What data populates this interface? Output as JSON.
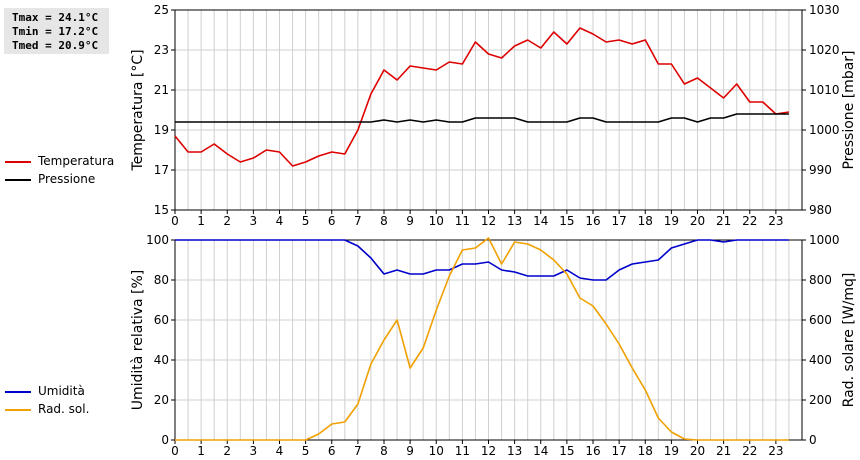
{
  "stats": {
    "tmax": "Tmax = 24.1°C",
    "tmin": "Tmin = 17.2°C",
    "tmed": "Tmed = 20.9°C"
  },
  "legend_top": [
    {
      "label": "Temperatura",
      "color": "#dd0000"
    },
    {
      "label": "Pressione",
      "color": "#000000"
    }
  ],
  "legend_bottom": [
    {
      "label": "Umidità",
      "color": "#0000cc"
    },
    {
      "label": "Rad. sol.",
      "color": "#f0a000"
    }
  ],
  "chart_data": [
    {
      "type": "line",
      "ylabel": "Temperatura [°C]",
      "y2label": "Pressione [mbar]",
      "xlim": [
        0,
        24
      ],
      "ylim": [
        15,
        25
      ],
      "y2lim": [
        980,
        1030
      ],
      "x_ticks": [
        "0",
        "1",
        "2",
        "3",
        "4",
        "5",
        "6",
        "7",
        "8",
        "9",
        "10",
        "11",
        "12",
        "13",
        "14",
        "15",
        "16",
        "17",
        "18",
        "19",
        "20",
        "21",
        "22",
        "23"
      ],
      "y_ticks": [
        "15",
        "17",
        "19",
        "21",
        "23",
        "25"
      ],
      "y2_ticks": [
        "980",
        "990",
        "1000",
        "1010",
        "1020",
        "1030"
      ],
      "grid": true,
      "series": [
        {
          "name": "Temperatura",
          "axis": "left",
          "color": "#dd0000",
          "x": [
            0,
            0.5,
            1,
            1.5,
            2,
            2.5,
            3,
            3.5,
            4,
            4.5,
            5,
            5.5,
            6,
            6.5,
            7,
            7.5,
            8,
            8.5,
            9,
            9.5,
            10,
            10.5,
            11,
            11.5,
            12,
            12.5,
            13,
            13.5,
            14,
            14.5,
            15,
            15.5,
            16,
            16.5,
            17,
            17.5,
            18,
            18.5,
            19,
            19.5,
            20,
            20.5,
            21,
            21.5,
            22,
            22.5,
            23,
            23.5
          ],
          "values": [
            18.7,
            17.9,
            17.9,
            18.3,
            17.8,
            17.4,
            17.6,
            18.0,
            17.9,
            17.2,
            17.4,
            17.7,
            17.9,
            17.8,
            19.0,
            20.8,
            22.0,
            21.5,
            22.2,
            22.1,
            22.0,
            22.4,
            22.3,
            23.4,
            22.8,
            22.6,
            23.2,
            23.5,
            23.1,
            23.9,
            23.3,
            24.1,
            23.8,
            23.4,
            23.5,
            23.3,
            23.5,
            22.3,
            22.3,
            21.3,
            21.6,
            21.1,
            20.6,
            21.3,
            20.4,
            20.4,
            19.8,
            19.9
          ]
        },
        {
          "name": "Pressione",
          "axis": "right",
          "color": "#000000",
          "x": [
            0,
            0.5,
            1,
            1.5,
            2,
            2.5,
            3,
            3.5,
            4,
            4.5,
            5,
            5.5,
            6,
            6.5,
            7,
            7.5,
            8,
            8.5,
            9,
            9.5,
            10,
            10.5,
            11,
            11.5,
            12,
            12.5,
            13,
            13.5,
            14,
            14.5,
            15,
            15.5,
            16,
            16.5,
            17,
            17.5,
            18,
            18.5,
            19,
            19.5,
            20,
            20.5,
            21,
            21.5,
            22,
            22.5,
            23,
            23.5
          ],
          "values": [
            1002,
            1002,
            1002,
            1002,
            1002,
            1002,
            1002,
            1002,
            1002,
            1002,
            1002,
            1002,
            1002,
            1002,
            1002,
            1002,
            1002.5,
            1002,
            1002.5,
            1002,
            1002.5,
            1002,
            1002,
            1003,
            1003,
            1003,
            1003,
            1002,
            1002,
            1002,
            1002,
            1003,
            1003,
            1002,
            1002,
            1002,
            1002,
            1002,
            1003,
            1003,
            1002,
            1003,
            1003,
            1004,
            1004,
            1004,
            1004,
            1004
          ]
        }
      ]
    },
    {
      "type": "line",
      "ylabel": "Umidità relativa [%]",
      "y2label": "Rad. solare [W/mq]",
      "xlim": [
        0,
        24
      ],
      "ylim": [
        0,
        100
      ],
      "y2lim": [
        0,
        1000
      ],
      "x_ticks": [
        "0",
        "1",
        "2",
        "3",
        "4",
        "5",
        "6",
        "7",
        "8",
        "9",
        "10",
        "11",
        "12",
        "13",
        "14",
        "15",
        "16",
        "17",
        "18",
        "19",
        "20",
        "21",
        "22",
        "23"
      ],
      "y_ticks": [
        "0",
        "20",
        "40",
        "60",
        "80",
        "100"
      ],
      "y2_ticks": [
        "0",
        "200",
        "400",
        "600",
        "800",
        "1000"
      ],
      "grid": true,
      "series": [
        {
          "name": "Umidità",
          "axis": "left",
          "color": "#0000cc",
          "x": [
            0,
            6.5,
            7,
            7.5,
            8,
            8.5,
            9,
            9.5,
            10,
            10.5,
            11,
            11.5,
            12,
            12.5,
            13,
            13.5,
            14,
            14.5,
            15,
            15.5,
            16,
            16.5,
            17,
            17.5,
            18,
            18.5,
            19,
            19.5,
            20,
            20.5,
            21,
            21.5,
            22,
            22.5,
            23,
            23.5
          ],
          "values": [
            100,
            100,
            97,
            91,
            83,
            85,
            83,
            83,
            85,
            85,
            88,
            88,
            89,
            85,
            84,
            82,
            82,
            82,
            85,
            81,
            80,
            80,
            85,
            88,
            89,
            90,
            96,
            98,
            100,
            100,
            99,
            100,
            100,
            100,
            100,
            100
          ],
          "step": true
        },
        {
          "name": "Rad. sol.",
          "axis": "right",
          "color": "#f0a000",
          "x": [
            0,
            5,
            5.5,
            6,
            6.5,
            7,
            7.5,
            8,
            8.5,
            9,
            9.5,
            10,
            10.5,
            11,
            11.5,
            12,
            12.5,
            13,
            13.5,
            14,
            14.5,
            15,
            15.5,
            16,
            16.5,
            17,
            17.5,
            18,
            18.5,
            19,
            19.5,
            20,
            23.5
          ],
          "values": [
            0,
            0,
            30,
            80,
            90,
            180,
            380,
            500,
            600,
            360,
            460,
            650,
            820,
            950,
            960,
            1010,
            880,
            990,
            980,
            950,
            900,
            830,
            710,
            670,
            580,
            480,
            360,
            250,
            110,
            40,
            5,
            0,
            0
          ]
        }
      ]
    }
  ]
}
